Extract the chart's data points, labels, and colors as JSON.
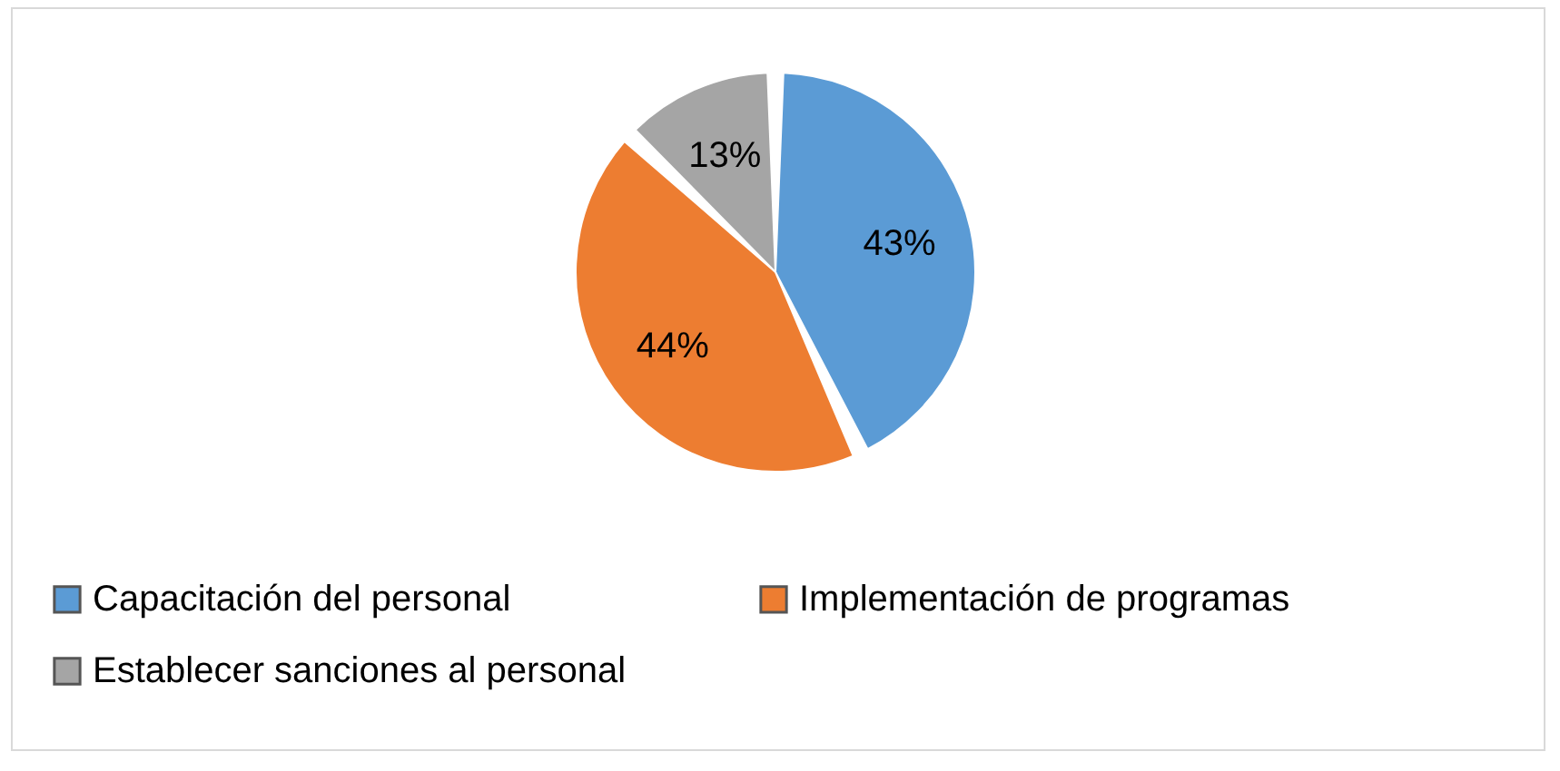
{
  "chart_data": {
    "type": "pie",
    "categories": [
      "Capacitación del personal",
      "Implementación de programas",
      "Establecer sanciones al personal"
    ],
    "values": [
      43,
      44,
      13
    ],
    "colors": [
      "#5b9bd5",
      "#ed7d31",
      "#a5a5a5"
    ],
    "value_labels": [
      "43%",
      "44%",
      "13%"
    ],
    "legend": "bottom"
  }
}
